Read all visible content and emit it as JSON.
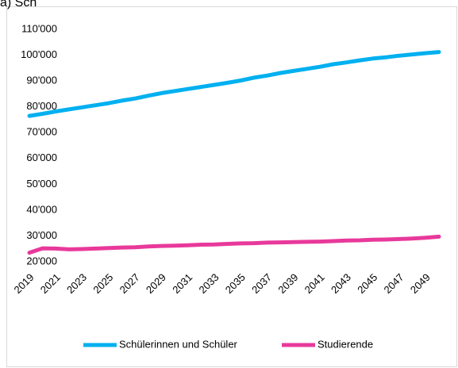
{
  "chart_data": {
    "type": "line",
    "title": "a) Sch",
    "categories": [
      "2019",
      null,
      "2021",
      null,
      "2023",
      null,
      "2025",
      null,
      "2027",
      null,
      "2029",
      null,
      "2031",
      null,
      "2033",
      null,
      "2035",
      null,
      "2037",
      null,
      "2039",
      null,
      "2041",
      null,
      "2043",
      null,
      "2045",
      null,
      "2047",
      null,
      "2049",
      null
    ],
    "series": [
      {
        "name": "Schülerinnen und Schüler",
        "color": "#00b0f0",
        "values": [
          76500,
          77300,
          78200,
          79000,
          79800,
          80600,
          81400,
          82400,
          83200,
          84300,
          85300,
          86100,
          86900,
          87700,
          88500,
          89300,
          90200,
          91300,
          92100,
          93100,
          93900,
          94700,
          95500,
          96500,
          97200,
          98000,
          98700,
          99200,
          99800,
          100300,
          100800,
          101200
        ]
      },
      {
        "name": "Studierende",
        "color": "#e8399b",
        "values": [
          23500,
          25200,
          25100,
          24800,
          24900,
          25100,
          25300,
          25500,
          25600,
          25900,
          26100,
          26200,
          26400,
          26600,
          26700,
          26900,
          27100,
          27200,
          27400,
          27500,
          27600,
          27700,
          27800,
          28000,
          28200,
          28300,
          28500,
          28600,
          28800,
          29000,
          29300,
          29700
        ]
      }
    ],
    "ylim": [
      20000,
      110000
    ],
    "yticks": [
      {
        "value": 20000,
        "label": "20'000"
      },
      {
        "value": 30000,
        "label": "30'000"
      },
      {
        "value": 40000,
        "label": "40'000"
      },
      {
        "value": 50000,
        "label": "50'000"
      },
      {
        "value": 60000,
        "label": "60'000"
      },
      {
        "value": 70000,
        "label": "70'000"
      },
      {
        "value": 80000,
        "label": "80'000"
      },
      {
        "value": 90000,
        "label": "90'000"
      },
      {
        "value": 100000,
        "label": "100'000"
      },
      {
        "value": 110000,
        "label": "110'000"
      }
    ],
    "grid": false,
    "legend": "bottom"
  }
}
